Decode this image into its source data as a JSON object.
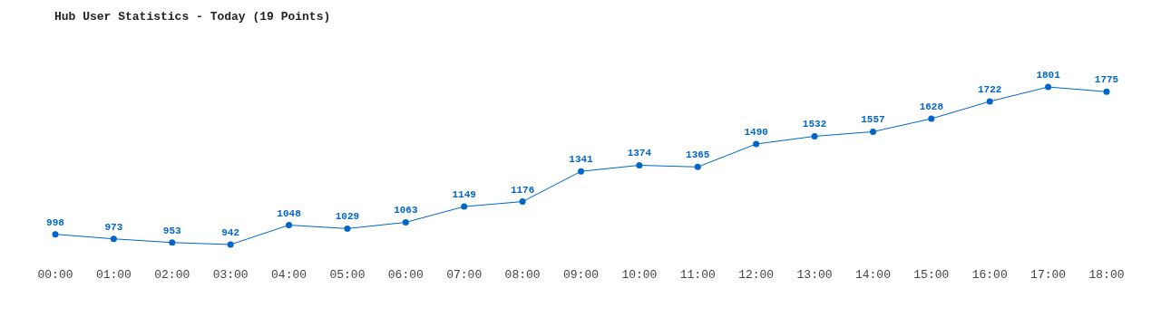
{
  "chart_data": {
    "type": "line",
    "title": "Hub User Statistics - Today (19 Points)",
    "categories": [
      "00:00",
      "01:00",
      "02:00",
      "03:00",
      "04:00",
      "05:00",
      "06:00",
      "07:00",
      "08:00",
      "09:00",
      "10:00",
      "11:00",
      "12:00",
      "13:00",
      "14:00",
      "15:00",
      "16:00",
      "17:00",
      "18:00"
    ],
    "series": [
      {
        "color": "#0066cc",
        "values": [
          998,
          973,
          953,
          942,
          1048,
          1029,
          1063,
          1149,
          1176,
          1341,
          1374,
          1365,
          1490,
          1532,
          1557,
          1628,
          1722,
          1801,
          1775
        ]
      }
    ],
    "data_labels": true,
    "marker": "circle",
    "grid": false
  }
}
